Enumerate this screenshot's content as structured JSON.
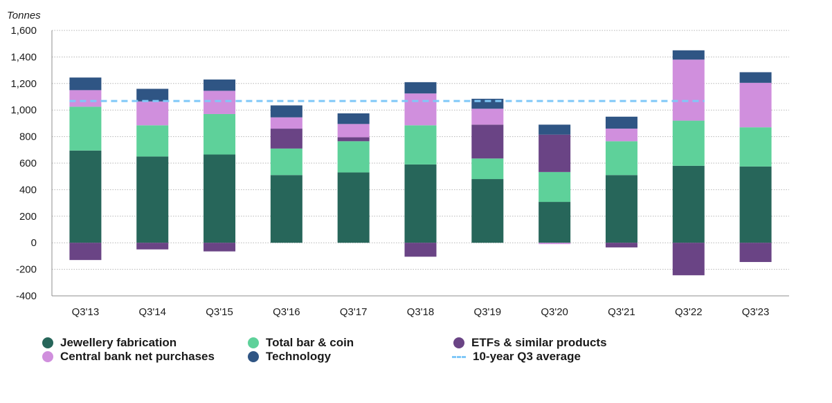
{
  "chart_data": {
    "type": "bar",
    "stacked": true,
    "unit_label": "Tonnes",
    "categories": [
      "Q3'13",
      "Q3'14",
      "Q3'15",
      "Q3'16",
      "Q3'17",
      "Q3'18",
      "Q3'19",
      "Q3'20",
      "Q3'21",
      "Q3'22",
      "Q3'23"
    ],
    "ylim": [
      -400,
      1600
    ],
    "yticks": [
      -400,
      -200,
      0,
      200,
      400,
      600,
      800,
      1000,
      1200,
      1400,
      1600
    ],
    "ytick_labels": [
      "-400",
      "-200",
      "0",
      "200",
      "400",
      "600",
      "800",
      "1,000",
      "1,200",
      "1,400",
      "1,600"
    ],
    "grid": true,
    "series": [
      {
        "name": "Jewellery fabrication",
        "color": "#27665a",
        "values": [
          695,
          650,
          665,
          510,
          530,
          590,
          480,
          308,
          510,
          580,
          575
        ]
      },
      {
        "name": "Total bar & coin",
        "color": "#5ed19a",
        "values": [
          330,
          235,
          305,
          200,
          235,
          295,
          155,
          225,
          255,
          340,
          295
        ]
      },
      {
        "name": "ETFs & similar products",
        "color": "#6a4485",
        "values": [
          -130,
          -50,
          -65,
          150,
          30,
          -105,
          255,
          282,
          -35,
          -245,
          -145
        ]
      },
      {
        "name": "Central bank net purchases",
        "color": "#d08fdd",
        "values": [
          125,
          180,
          175,
          85,
          100,
          240,
          120,
          0,
          95,
          460,
          335
        ]
      },
      {
        "name": "Technology",
        "color": "#2f5584",
        "values": [
          95,
          95,
          85,
          90,
          80,
          85,
          75,
          75,
          90,
          70,
          80
        ]
      }
    ],
    "negative_extra": {
      "category": "Q3'20",
      "series": "Central bank net purchases",
      "value": -10
    },
    "average_line": {
      "name": "10-year Q3 average",
      "value": 1068,
      "color": "#7fc8f8",
      "style": "dashed"
    },
    "legend_placement": "bottom"
  }
}
